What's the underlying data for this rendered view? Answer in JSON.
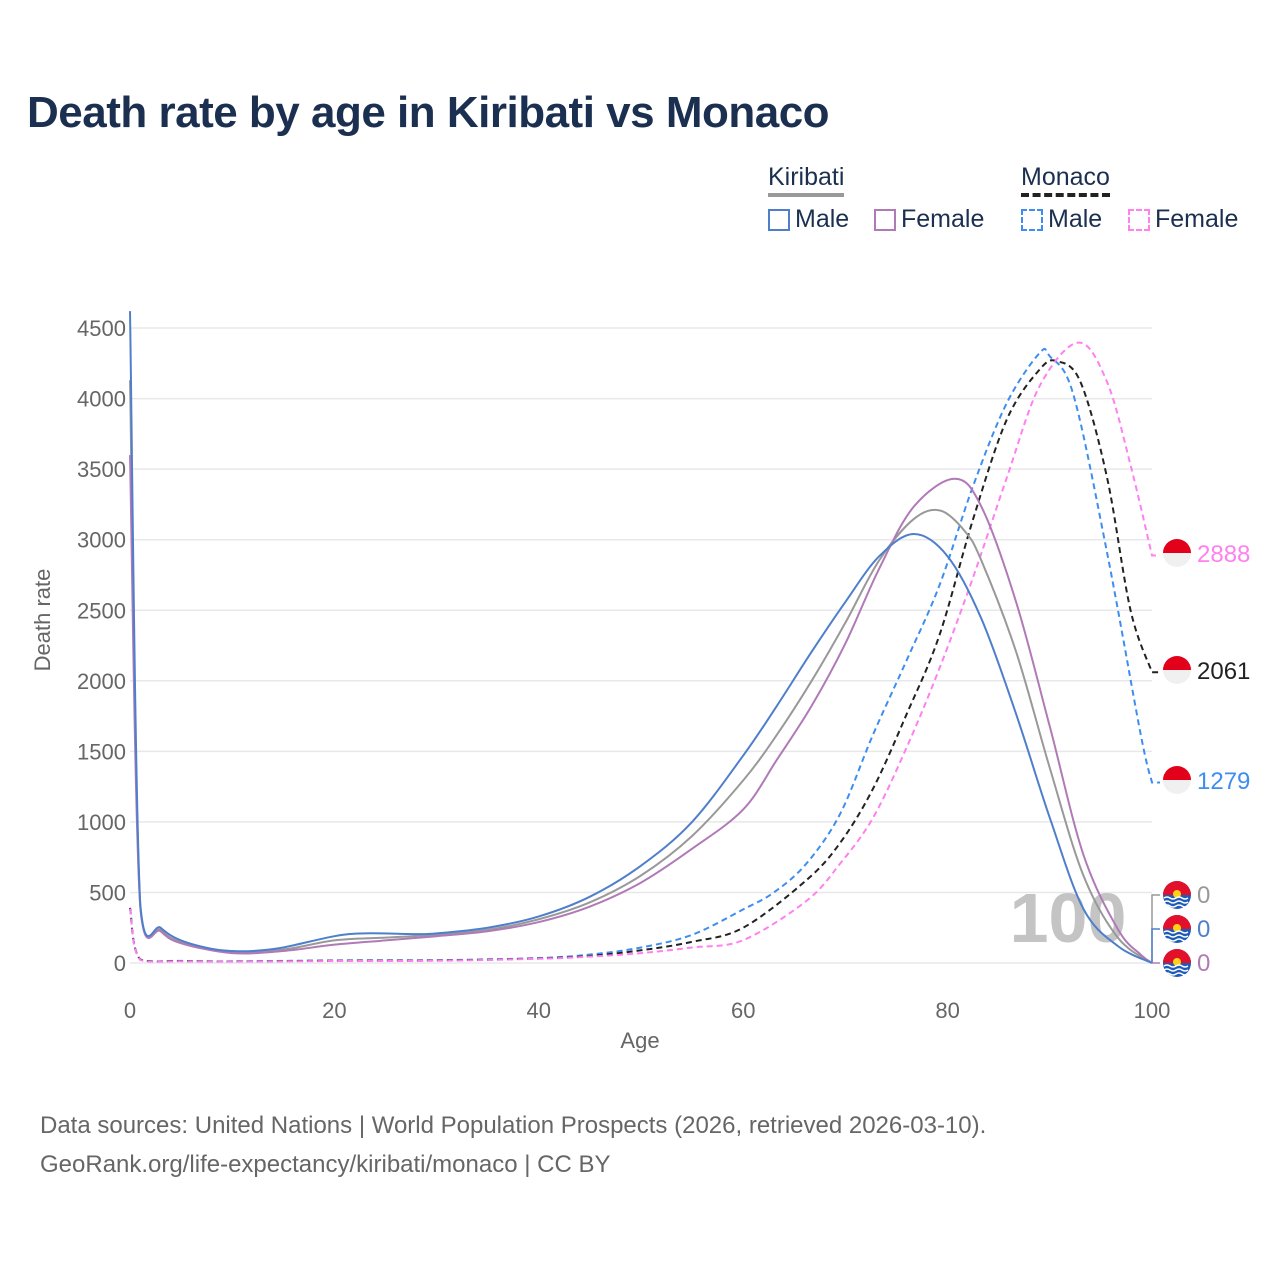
{
  "chart_data": {
    "type": "line",
    "title": "Death rate by age in Kiribati vs Monaco",
    "xlabel": "Age",
    "ylabel": "Death rate",
    "xlim": [
      0,
      100
    ],
    "ylim": [
      0,
      4700
    ],
    "xticks": [
      0,
      20,
      40,
      60,
      80,
      100
    ],
    "yticks": [
      0,
      500,
      1000,
      1500,
      2000,
      2500,
      3000,
      3500,
      4000,
      4500
    ],
    "grid": true,
    "legend_position": "top-right",
    "legend": {
      "groups": [
        {
          "country": "Kiribati",
          "items": [
            "Male",
            "Female"
          ]
        },
        {
          "country": "Monaco",
          "items": [
            "Male",
            "Female"
          ]
        }
      ]
    },
    "watermark_age": "100",
    "series": [
      {
        "name": "Kiribati Male",
        "color": "#4f7fcb",
        "dash": false,
        "points": [
          [
            0,
            4620
          ],
          [
            1,
            420
          ],
          [
            3,
            250
          ],
          [
            5,
            160
          ],
          [
            8,
            100
          ],
          [
            10,
            85
          ],
          [
            12,
            85
          ],
          [
            15,
            110
          ],
          [
            20,
            190
          ],
          [
            23,
            210
          ],
          [
            28,
            205
          ],
          [
            30,
            210
          ],
          [
            35,
            250
          ],
          [
            40,
            330
          ],
          [
            45,
            470
          ],
          [
            50,
            690
          ],
          [
            55,
            1000
          ],
          [
            60,
            1470
          ],
          [
            63.3,
            1823
          ],
          [
            66.7,
            2206
          ],
          [
            70,
            2559
          ],
          [
            73.3,
            2882
          ],
          [
            76.7,
            3040
          ],
          [
            80,
            2882
          ],
          [
            83.3,
            2441
          ],
          [
            86.7,
            1765
          ],
          [
            90,
            1029
          ],
          [
            93.3,
            382
          ],
          [
            96.7,
            118
          ],
          [
            100,
            0
          ]
        ],
        "end_label": "0"
      },
      {
        "name": "Kiribati Total",
        "color": "#999999",
        "dash": false,
        "points": [
          [
            0,
            4130
          ],
          [
            1,
            410
          ],
          [
            3,
            235
          ],
          [
            5,
            150
          ],
          [
            10,
            75
          ],
          [
            15,
            95
          ],
          [
            20,
            160
          ],
          [
            25,
            180
          ],
          [
            30,
            200
          ],
          [
            35,
            235
          ],
          [
            40,
            310
          ],
          [
            45,
            430
          ],
          [
            50,
            620
          ],
          [
            55,
            900
          ],
          [
            60,
            1294
          ],
          [
            63.3,
            1618
          ],
          [
            66.7,
            2000
          ],
          [
            70,
            2412
          ],
          [
            73.3,
            2853
          ],
          [
            76.7,
            3147
          ],
          [
            79.3,
            3206
          ],
          [
            81.7,
            3059
          ],
          [
            83.3,
            2853
          ],
          [
            86.7,
            2206
          ],
          [
            90,
            1382
          ],
          [
            93.3,
            618
          ],
          [
            96.7,
            176
          ],
          [
            100,
            0
          ]
        ],
        "end_label": "0"
      },
      {
        "name": "Kiribati Female",
        "color": "#b07ab7",
        "dash": false,
        "points": [
          [
            0,
            3600
          ],
          [
            1,
            400
          ],
          [
            3,
            225
          ],
          [
            5,
            140
          ],
          [
            10,
            70
          ],
          [
            15,
            85
          ],
          [
            20,
            130
          ],
          [
            25,
            160
          ],
          [
            30,
            190
          ],
          [
            35,
            225
          ],
          [
            40,
            290
          ],
          [
            45,
            400
          ],
          [
            50,
            570
          ],
          [
            55,
            810
          ],
          [
            60,
            1088
          ],
          [
            63.3,
            1441
          ],
          [
            66.7,
            1823
          ],
          [
            70,
            2265
          ],
          [
            73.3,
            2794
          ],
          [
            76.7,
            3235
          ],
          [
            80.7,
            3432
          ],
          [
            83.3,
            3235
          ],
          [
            86.7,
            2559
          ],
          [
            90,
            1676
          ],
          [
            93.3,
            765
          ],
          [
            96.7,
            235
          ],
          [
            98.9,
            59
          ],
          [
            100,
            0
          ]
        ],
        "end_label": "0"
      },
      {
        "name": "Monaco Male",
        "color": "#3d8ef0",
        "dash": true,
        "points": [
          [
            0,
            390
          ],
          [
            1,
            25
          ],
          [
            5,
            15
          ],
          [
            10,
            12
          ],
          [
            20,
            18
          ],
          [
            30,
            20
          ],
          [
            40,
            35
          ],
          [
            45,
            60
          ],
          [
            50,
            110
          ],
          [
            55,
            200
          ],
          [
            60,
            380
          ],
          [
            63,
            500
          ],
          [
            66.2,
            706
          ],
          [
            69.5,
            1059
          ],
          [
            72.7,
            1618
          ],
          [
            76,
            2147
          ],
          [
            79.2,
            2676
          ],
          [
            82.5,
            3382
          ],
          [
            85.8,
            3970
          ],
          [
            89,
            4323
          ],
          [
            90,
            4300
          ],
          [
            92.3,
            4030
          ],
          [
            95.6,
            2910
          ],
          [
            98.9,
            1618
          ],
          [
            100,
            1279
          ]
        ],
        "end_label": "1279"
      },
      {
        "name": "Monaco Total",
        "color": "#222222",
        "dash": true,
        "points": [
          [
            0,
            390
          ],
          [
            1,
            25
          ],
          [
            5,
            14
          ],
          [
            10,
            11
          ],
          [
            20,
            16
          ],
          [
            30,
            18
          ],
          [
            40,
            32
          ],
          [
            45,
            50
          ],
          [
            50,
            90
          ],
          [
            55,
            150
          ],
          [
            60,
            250
          ],
          [
            66.2,
            588
          ],
          [
            69.5,
            853
          ],
          [
            72.7,
            1235
          ],
          [
            76,
            1765
          ],
          [
            79.2,
            2323
          ],
          [
            82.5,
            3147
          ],
          [
            85.8,
            3853
          ],
          [
            89,
            4206
          ],
          [
            90.7,
            4265
          ],
          [
            93,
            4118
          ],
          [
            95.6,
            3441
          ],
          [
            97.9,
            2500
          ],
          [
            100,
            2061
          ]
        ],
        "end_label": "2061"
      },
      {
        "name": "Monaco Female",
        "color": "#ff80ee",
        "dash": true,
        "points": [
          [
            0,
            385
          ],
          [
            1,
            22
          ],
          [
            5,
            12
          ],
          [
            10,
            10
          ],
          [
            20,
            14
          ],
          [
            30,
            16
          ],
          [
            40,
            30
          ],
          [
            45,
            45
          ],
          [
            50,
            70
          ],
          [
            55,
            110
          ],
          [
            60,
            162
          ],
          [
            66.2,
            441
          ],
          [
            69.5,
            706
          ],
          [
            72.7,
            1029
          ],
          [
            76,
            1529
          ],
          [
            79.2,
            2088
          ],
          [
            82.5,
            2735
          ],
          [
            85.8,
            3441
          ],
          [
            89,
            4088
          ],
          [
            92.8,
            4397
          ],
          [
            95.6,
            4118
          ],
          [
            97.9,
            3529
          ],
          [
            100,
            2888
          ]
        ],
        "end_label": "2888"
      }
    ]
  },
  "footer": {
    "line1": "Data sources: United Nations | World Population Prospects (2026, retrieved 2026-03-10).",
    "line2": "GeoRank.org/life-expectancy/kiribati/monaco | CC BY"
  }
}
